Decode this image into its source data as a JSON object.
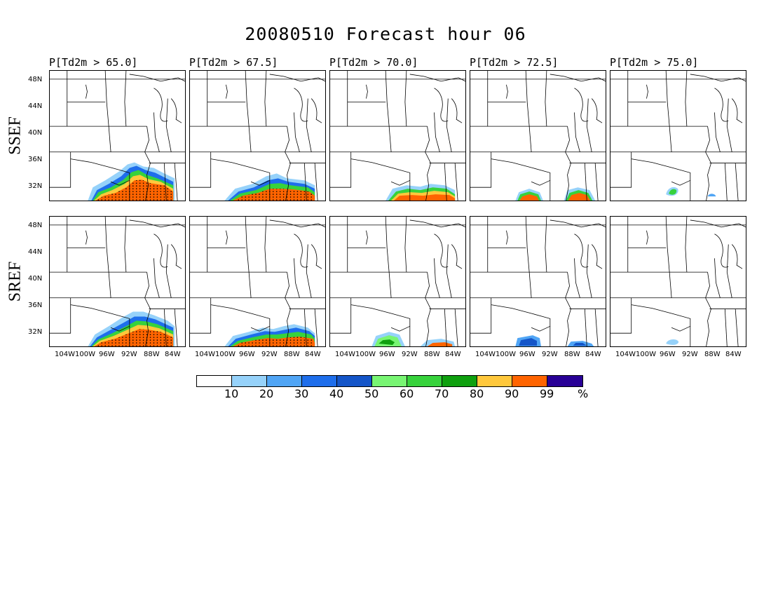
{
  "title": "20080510 Forecast hour 06",
  "columns": [
    {
      "label": "P[Td2m > 65.0]"
    },
    {
      "label": "P[Td2m > 67.5]"
    },
    {
      "label": "P[Td2m > 70.0]"
    },
    {
      "label": "P[Td2m > 72.5]"
    },
    {
      "label": "P[Td2m > 75.0]"
    }
  ],
  "rows": [
    {
      "label": "SSEF"
    },
    {
      "label": "SREF"
    }
  ],
  "lat_ticks": [
    "48N",
    "44N",
    "40N",
    "36N",
    "32N"
  ],
  "lon_ticks": [
    "104W",
    "100W",
    "96W",
    "92W",
    "88W",
    "84W"
  ],
  "legend": {
    "labels": [
      "10",
      "20",
      "30",
      "40",
      "50",
      "60",
      "70",
      "80",
      "90",
      "99"
    ],
    "unit": "%",
    "colors": [
      "#ffffff",
      "#96d2fa",
      "#50a5f5",
      "#1e6eeb",
      "#1455c8",
      "#78f573",
      "#37d23c",
      "#0fa00f",
      "#ffc83c",
      "#ff6400",
      "#280096"
    ]
  },
  "chart_data": {
    "type": "heatmap",
    "date": "20080510",
    "forecast_hour": "06",
    "variable": "Td2m",
    "thresholds": [
      65.0,
      67.5,
      70.0,
      72.5,
      75.0
    ],
    "ensembles": [
      "SSEF",
      "SREF"
    ],
    "lat_range": [
      "32N",
      "48N"
    ],
    "lon_range": [
      "104W",
      "84W"
    ]
  }
}
